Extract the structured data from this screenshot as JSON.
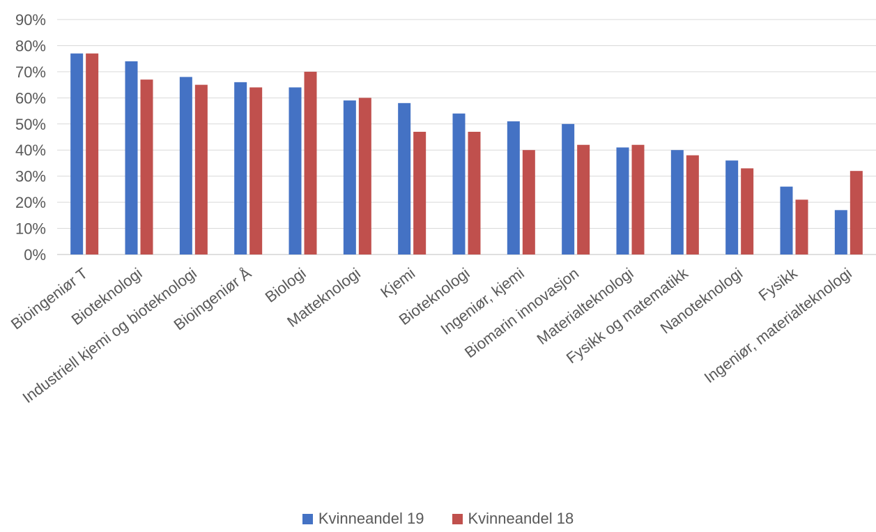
{
  "chart_data": {
    "type": "bar",
    "categories": [
      "Bioingeniør T",
      "Bioteknologi",
      "Industriell kjemi og bioteknologi",
      "Bioingeniør Å",
      "Biologi",
      "Matteknologi",
      "Kjemi",
      "Bioteknologi",
      "Ingeniør, kjemi",
      "Biomarin innovasjon",
      "Materialteknologi",
      "Fysikk og matematikk",
      "Nanoteknologi",
      "Fysikk",
      "Ingeniør, materialteknologi"
    ],
    "series": [
      {
        "name": "Kvinneandel 19",
        "color": "#4472C4",
        "values": [
          77,
          74,
          68,
          66,
          64,
          59,
          58,
          54,
          51,
          50,
          41,
          40,
          36,
          26,
          17
        ]
      },
      {
        "name": "Kvinneandel 18",
        "color": "#C0504D",
        "values": [
          77,
          67,
          65,
          64,
          70,
          60,
          47,
          47,
          40,
          42,
          42,
          38,
          33,
          21,
          32
        ]
      }
    ],
    "yticks": [
      "0%",
      "10%",
      "20%",
      "30%",
      "40%",
      "50%",
      "60%",
      "70%",
      "80%",
      "90%"
    ],
    "ylim": [
      0,
      90
    ],
    "grid": true,
    "legend_position": "bottom"
  }
}
